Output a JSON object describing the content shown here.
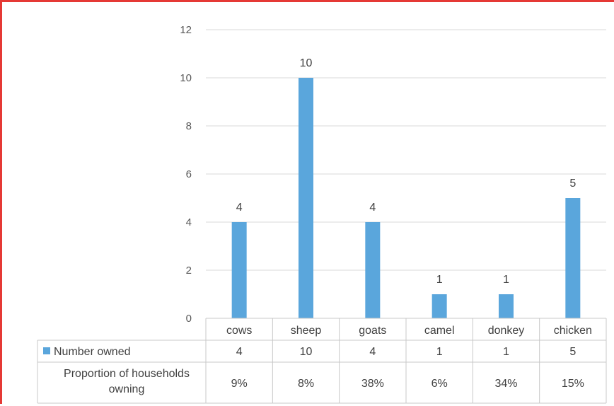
{
  "chart_data": {
    "type": "bar",
    "categories": [
      "cows",
      "sheep",
      "goats",
      "camel",
      "donkey",
      "chicken"
    ],
    "series": [
      {
        "name": "Number owned",
        "values": [
          4,
          10,
          4,
          1,
          1,
          5
        ],
        "color": "#5aa6dc"
      }
    ],
    "data_table_rows": [
      {
        "label_lines": [
          "Proportion of households",
          "owning"
        ],
        "values": [
          "9%",
          "8%",
          "38%",
          "6%",
          "34%",
          "15%"
        ]
      }
    ],
    "ylim": [
      0,
      12
    ],
    "yticks": [
      0,
      2,
      4,
      6,
      8,
      10,
      12
    ],
    "grid": true,
    "legend": "data-table",
    "data_labels": true
  }
}
